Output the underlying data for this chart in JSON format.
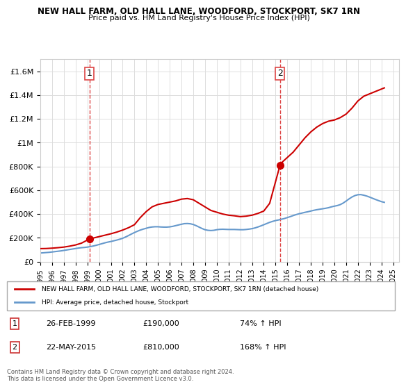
{
  "title": "NEW HALL FARM, OLD HALL LANE, WOODFORD, STOCKPORT, SK7 1RN",
  "subtitle": "Price paid vs. HM Land Registry's House Price Index (HPI)",
  "legend_line1": "NEW HALL FARM, OLD HALL LANE, WOODFORD, STOCKPORT, SK7 1RN (detached house)",
  "legend_line2": "HPI: Average price, detached house, Stockport",
  "annotation1_label": "1",
  "annotation1_date": "26-FEB-1999",
  "annotation1_price": "£190,000",
  "annotation1_hpi": "74% ↑ HPI",
  "annotation2_label": "2",
  "annotation2_date": "22-MAY-2015",
  "annotation2_price": "£810,000",
  "annotation2_hpi": "168% ↑ HPI",
  "footer": "Contains HM Land Registry data © Crown copyright and database right 2024.\nThis data is licensed under the Open Government Licence v3.0.",
  "red_color": "#cc0000",
  "blue_color": "#6699cc",
  "dashed_red": "#dd4444",
  "ylim": [
    0,
    1700000
  ],
  "yticks": [
    0,
    200000,
    400000,
    600000,
    800000,
    1000000,
    1200000,
    1400000,
    1600000
  ],
  "ytick_labels": [
    "£0",
    "£200K",
    "£400K",
    "£600K",
    "£800K",
    "£1M",
    "£1.2M",
    "£1.4M",
    "£1.6M"
  ],
  "hpi_years": [
    1995.0,
    1995.25,
    1995.5,
    1995.75,
    1996.0,
    1996.25,
    1996.5,
    1996.75,
    1997.0,
    1997.25,
    1997.5,
    1997.75,
    1998.0,
    1998.25,
    1998.5,
    1998.75,
    1999.0,
    1999.25,
    1999.5,
    1999.75,
    2000.0,
    2000.25,
    2000.5,
    2000.75,
    2001.0,
    2001.25,
    2001.5,
    2001.75,
    2002.0,
    2002.25,
    2002.5,
    2002.75,
    2003.0,
    2003.25,
    2003.5,
    2003.75,
    2004.0,
    2004.25,
    2004.5,
    2004.75,
    2005.0,
    2005.25,
    2005.5,
    2005.75,
    2006.0,
    2006.25,
    2006.5,
    2006.75,
    2007.0,
    2007.25,
    2007.5,
    2007.75,
    2008.0,
    2008.25,
    2008.5,
    2008.75,
    2009.0,
    2009.25,
    2009.5,
    2009.75,
    2010.0,
    2010.25,
    2010.5,
    2010.75,
    2011.0,
    2011.25,
    2011.5,
    2011.75,
    2012.0,
    2012.25,
    2012.5,
    2012.75,
    2013.0,
    2013.25,
    2013.5,
    2013.75,
    2014.0,
    2014.25,
    2014.5,
    2014.75,
    2015.0,
    2015.25,
    2015.5,
    2015.75,
    2016.0,
    2016.25,
    2016.5,
    2016.75,
    2017.0,
    2017.25,
    2017.5,
    2017.75,
    2018.0,
    2018.25,
    2018.5,
    2018.75,
    2019.0,
    2019.25,
    2019.5,
    2019.75,
    2020.0,
    2020.25,
    2020.5,
    2020.75,
    2021.0,
    2021.25,
    2021.5,
    2021.75,
    2022.0,
    2022.25,
    2022.5,
    2022.75,
    2023.0,
    2023.25,
    2023.5,
    2023.75,
    2024.0,
    2024.25
  ],
  "hpi_values": [
    72000,
    74000,
    76000,
    78000,
    81000,
    84000,
    87000,
    90000,
    94000,
    98000,
    102000,
    106000,
    110000,
    114000,
    117000,
    119000,
    122000,
    126000,
    131000,
    137000,
    144000,
    151000,
    158000,
    164000,
    169000,
    175000,
    181000,
    188000,
    196000,
    207000,
    219000,
    232000,
    244000,
    255000,
    265000,
    273000,
    280000,
    287000,
    291000,
    293000,
    293000,
    291000,
    290000,
    290000,
    292000,
    296000,
    302000,
    308000,
    314000,
    319000,
    320000,
    318000,
    312000,
    302000,
    290000,
    278000,
    268000,
    263000,
    261000,
    263000,
    268000,
    271000,
    272000,
    271000,
    270000,
    270000,
    270000,
    269000,
    268000,
    268000,
    270000,
    273000,
    277000,
    283000,
    291000,
    300000,
    310000,
    320000,
    330000,
    338000,
    345000,
    350000,
    356000,
    362000,
    370000,
    378000,
    387000,
    395000,
    402000,
    408000,
    414000,
    419000,
    425000,
    431000,
    436000,
    440000,
    444000,
    448000,
    453000,
    460000,
    466000,
    471000,
    479000,
    492000,
    509000,
    527000,
    543000,
    555000,
    562000,
    563000,
    558000,
    551000,
    542000,
    532000,
    522000,
    513000,
    504000,
    498000
  ],
  "property_years": [
    1995.0,
    1995.5,
    1996.0,
    1996.5,
    1997.0,
    1997.5,
    1998.0,
    1998.5,
    1999.17,
    1999.5,
    2000.0,
    2000.5,
    2001.0,
    2001.5,
    2002.0,
    2002.5,
    2003.0,
    2003.5,
    2004.0,
    2004.5,
    2005.0,
    2005.5,
    2006.0,
    2006.5,
    2007.0,
    2007.5,
    2008.0,
    2008.5,
    2009.0,
    2009.5,
    2010.0,
    2010.5,
    2011.0,
    2011.5,
    2012.0,
    2012.5,
    2013.0,
    2013.5,
    2014.0,
    2014.5,
    2015.38,
    2015.5,
    2016.0,
    2016.5,
    2017.0,
    2017.5,
    2018.0,
    2018.5,
    2019.0,
    2019.5,
    2020.0,
    2020.5,
    2021.0,
    2021.5,
    2022.0,
    2022.5,
    2023.0,
    2023.5,
    2024.0,
    2024.25
  ],
  "property_values": [
    109000,
    110000,
    113000,
    117000,
    122000,
    130000,
    140000,
    155000,
    190000,
    198000,
    210000,
    222000,
    234000,
    248000,
    265000,
    285000,
    310000,
    370000,
    420000,
    460000,
    480000,
    490000,
    500000,
    510000,
    525000,
    530000,
    520000,
    490000,
    460000,
    430000,
    415000,
    400000,
    390000,
    385000,
    378000,
    382000,
    390000,
    405000,
    425000,
    490000,
    810000,
    830000,
    875000,
    920000,
    980000,
    1040000,
    1090000,
    1130000,
    1160000,
    1180000,
    1190000,
    1210000,
    1240000,
    1290000,
    1350000,
    1390000,
    1410000,
    1430000,
    1450000,
    1460000
  ],
  "sale1_x": 1999.17,
  "sale1_y": 190000,
  "sale2_x": 2015.38,
  "sale2_y": 810000,
  "vline1_x": 1999.17,
  "vline2_x": 2015.38,
  "xmin": 1995,
  "xmax": 2025.5
}
